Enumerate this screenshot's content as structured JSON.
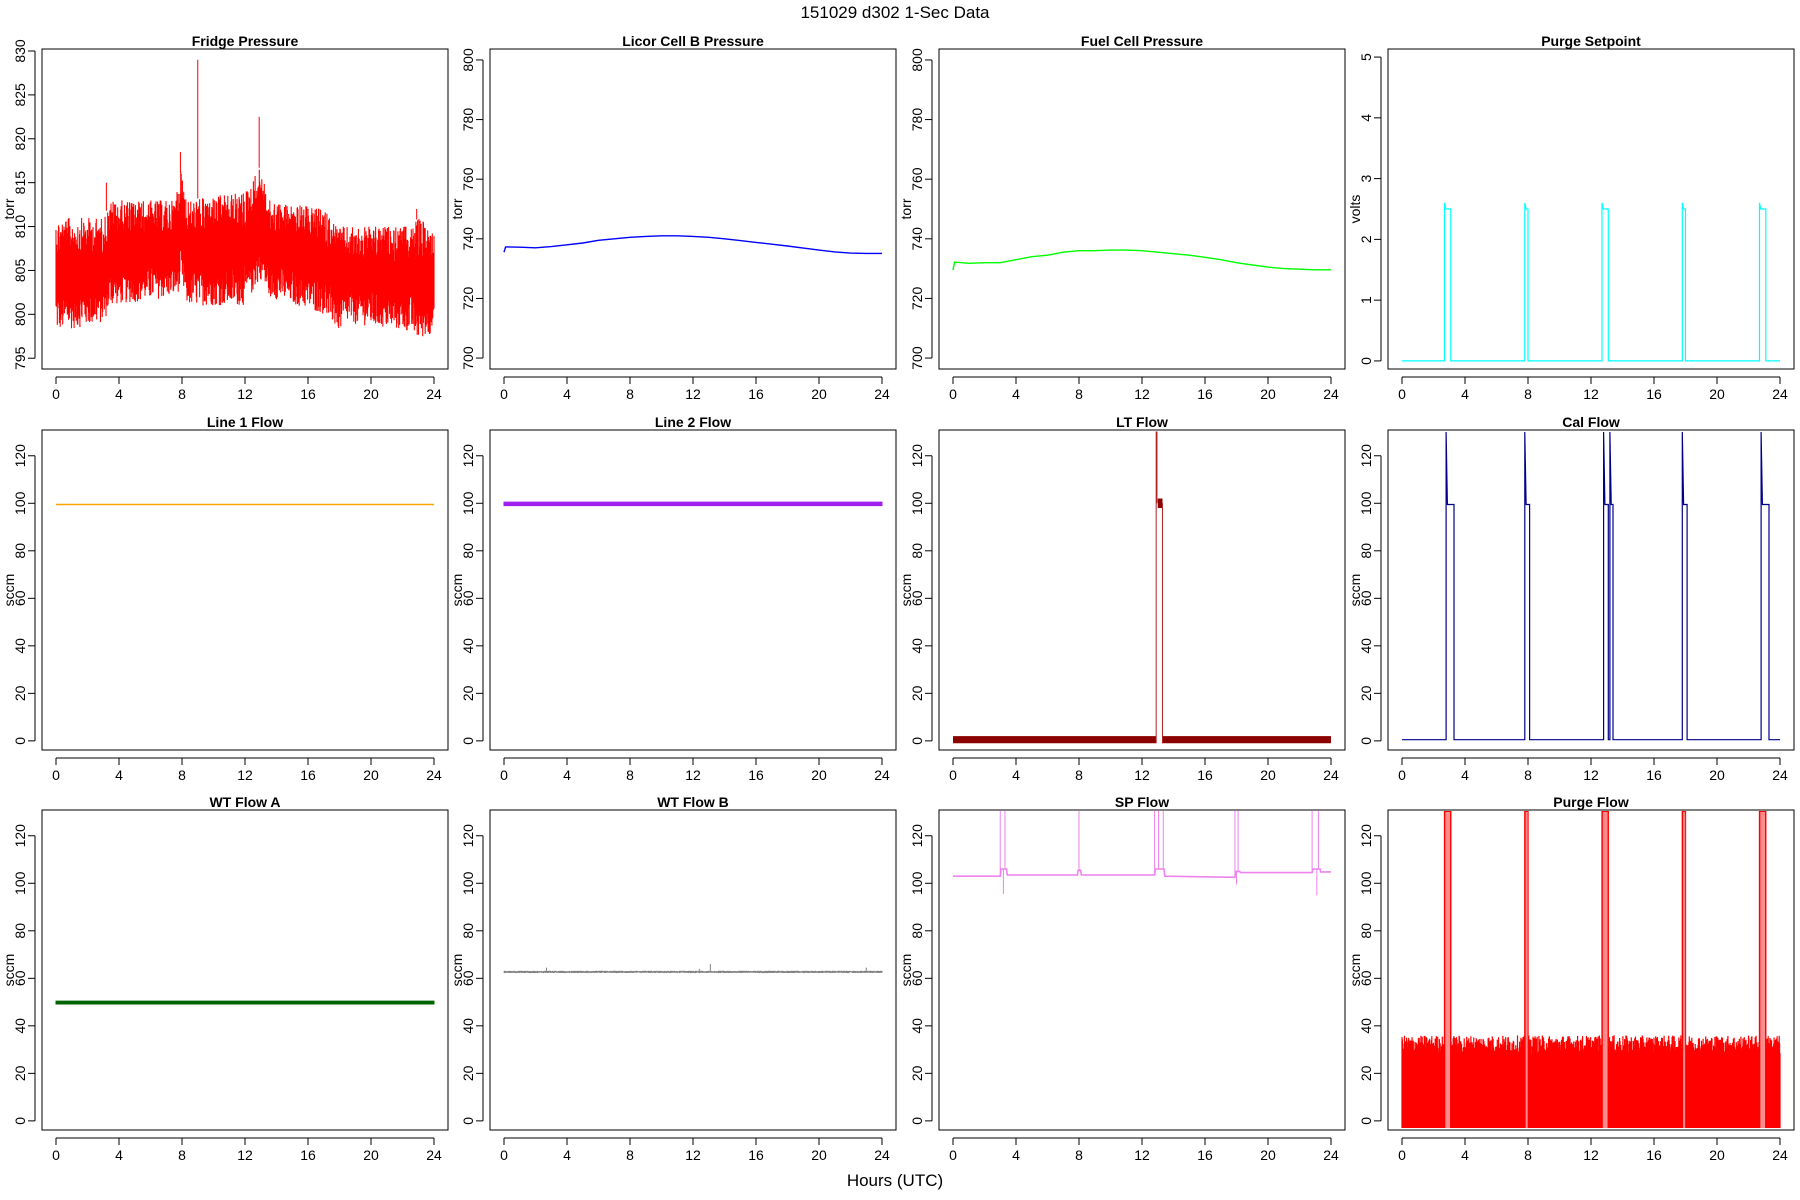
{
  "figure": {
    "title": "151029   d302   1-Sec Data",
    "xlabel": "Hours (UTC)"
  },
  "chart_data": [
    {
      "type": "line",
      "title": "Fridge Pressure",
      "ylabel": "torr",
      "color": "#ff0000",
      "xlim": [
        0,
        24
      ],
      "ylim": [
        794,
        830
      ],
      "xticks": [
        0,
        4,
        8,
        12,
        16,
        20,
        24
      ],
      "yticks": [
        795,
        800,
        805,
        810,
        815,
        820,
        825,
        830
      ],
      "series": [
        {
          "style": "noisy_band",
          "x": [
            0,
            3,
            3.5,
            7.5,
            8,
            8.3,
            12,
            13,
            13.5,
            17,
            18,
            18.5,
            22.5,
            23,
            24
          ],
          "low": [
            798,
            799,
            801,
            802,
            803,
            801,
            801,
            804,
            802,
            800,
            798,
            799,
            798,
            797,
            798
          ],
          "high": [
            811,
            811,
            813,
            813,
            817,
            813,
            814,
            817,
            813,
            812,
            810,
            810,
            810,
            811,
            810
          ],
          "spikes": [
            [
              9.0,
              829
            ],
            [
              12.9,
              822.5
            ],
            [
              3.2,
              815
            ],
            [
              7.9,
              818.5
            ],
            [
              22.9,
              812
            ]
          ]
        }
      ]
    },
    {
      "type": "line",
      "title": "Licor Cell B Pressure",
      "ylabel": "torr",
      "color": "#0000ff",
      "xlim": [
        0,
        24
      ],
      "ylim": [
        697,
        803
      ],
      "xticks": [
        0,
        4,
        8,
        12,
        16,
        20,
        24
      ],
      "yticks": [
        700,
        720,
        740,
        760,
        780,
        800
      ],
      "series": [
        {
          "style": "line",
          "x": [
            0,
            0.1,
            1,
            2,
            3,
            4,
            5,
            6,
            7,
            8,
            9,
            10,
            11,
            12,
            13,
            14,
            15,
            16,
            17,
            18,
            19,
            20,
            21,
            22,
            23,
            24
          ],
          "y": [
            735.5,
            737.3,
            737.2,
            737.0,
            737.4,
            738.0,
            738.6,
            739.5,
            740.0,
            740.5,
            740.8,
            741.0,
            741.0,
            740.8,
            740.5,
            740.0,
            739.4,
            738.8,
            738.2,
            737.6,
            736.9,
            736.2,
            735.6,
            735.2,
            735.1,
            735.1
          ]
        }
      ]
    },
    {
      "type": "line",
      "title": "Fuel Cell Pressure",
      "ylabel": "torr",
      "color": "#00ff00",
      "xlim": [
        0,
        24
      ],
      "ylim": [
        697,
        803
      ],
      "xticks": [
        0,
        4,
        8,
        12,
        16,
        20,
        24
      ],
      "yticks": [
        700,
        720,
        740,
        760,
        780,
        800
      ],
      "series": [
        {
          "style": "line",
          "x": [
            0,
            0.1,
            1,
            2,
            3,
            4,
            5,
            6,
            7,
            8,
            9,
            10,
            11,
            12,
            13,
            14,
            15,
            16,
            17,
            18,
            19,
            20,
            21,
            22,
            23,
            24
          ],
          "y": [
            729.5,
            732.2,
            731.8,
            732.0,
            732.0,
            733.0,
            734.0,
            734.5,
            735.5,
            736.0,
            736.0,
            736.2,
            736.2,
            736.0,
            735.5,
            735.0,
            734.5,
            733.8,
            733.0,
            732.0,
            731.2,
            730.5,
            730.0,
            729.8,
            729.6,
            729.6
          ]
        }
      ]
    },
    {
      "type": "line",
      "title": "Purge Setpoint",
      "ylabel": "volts",
      "color": "#00ffff",
      "xlim": [
        0,
        24
      ],
      "ylim": [
        -0.1,
        5.1
      ],
      "xticks": [
        0,
        4,
        8,
        12,
        16,
        20,
        24
      ],
      "yticks": [
        0,
        1,
        2,
        3,
        4,
        5
      ],
      "series": [
        {
          "style": "pulses",
          "base": 0,
          "level": 2.5,
          "peak": 2.6,
          "pulses": [
            [
              2.7,
              3.1
            ],
            [
              7.8,
              8.0
            ],
            [
              12.7,
              13.1
            ],
            [
              17.8,
              18.0
            ],
            [
              22.7,
              23.1
            ]
          ]
        }
      ]
    },
    {
      "type": "line",
      "title": "Line 1 Flow",
      "ylabel": "sccm",
      "color": "#ffa500",
      "xlim": [
        0,
        24
      ],
      "ylim": [
        -3,
        130
      ],
      "xticks": [
        0,
        4,
        8,
        12,
        16,
        20,
        24
      ],
      "yticks": [
        0,
        20,
        40,
        60,
        80,
        100,
        120
      ],
      "series": [
        {
          "style": "line",
          "x": [
            0,
            24
          ],
          "y": [
            99.5,
            99.5
          ]
        }
      ]
    },
    {
      "type": "line",
      "title": "Line 2 Flow",
      "ylabel": "sccm",
      "color": "#a020f0",
      "xlim": [
        0,
        24
      ],
      "ylim": [
        -3,
        130
      ],
      "xticks": [
        0,
        4,
        8,
        12,
        16,
        20,
        24
      ],
      "yticks": [
        0,
        20,
        40,
        60,
        80,
        100,
        120
      ],
      "series": [
        {
          "style": "band",
          "x": [
            0,
            24
          ],
          "low": [
            99,
            99
          ],
          "high": [
            100.5,
            100.5
          ]
        }
      ]
    },
    {
      "type": "line",
      "title": "LT Flow",
      "ylabel": "sccm",
      "color": "#8b0000",
      "xlim": [
        0,
        24
      ],
      "ylim": [
        -3,
        130
      ],
      "xticks": [
        0,
        4,
        8,
        12,
        16,
        20,
        24
      ],
      "yticks": [
        0,
        20,
        40,
        60,
        80,
        100,
        120
      ],
      "series": [
        {
          "style": "lt_flow",
          "band": [
            [
              0,
              12.9
            ],
            [
              13.3,
              24
            ]
          ],
          "band_low": -1,
          "band_high": 2,
          "plateau": [
            12.9,
            13.3
          ],
          "plateau_level": 100,
          "spike_x": 13.0,
          "spike_top": 130
        }
      ]
    },
    {
      "type": "line",
      "title": "Cal Flow",
      "ylabel": "sccm",
      "color": "#00008b",
      "xlim": [
        0,
        24
      ],
      "ylim": [
        -3,
        130
      ],
      "xticks": [
        0,
        4,
        8,
        12,
        16,
        20,
        24
      ],
      "yticks": [
        0,
        20,
        40,
        60,
        80,
        100,
        120
      ],
      "series": [
        {
          "style": "pulses",
          "base": 0.5,
          "level": 99.5,
          "peak": 130,
          "pulses": [
            [
              2.8,
              3.3
            ],
            [
              7.8,
              8.1
            ],
            [
              12.8,
              13.1
            ],
            [
              13.2,
              13.4
            ],
            [
              17.8,
              18.1
            ],
            [
              22.8,
              23.3
            ]
          ]
        }
      ]
    },
    {
      "type": "line",
      "title": "WT Flow A",
      "ylabel": "sccm",
      "color": "#006400",
      "xlim": [
        0,
        24
      ],
      "ylim": [
        -3,
        130
      ],
      "xticks": [
        0,
        4,
        8,
        12,
        16,
        20,
        24
      ],
      "yticks": [
        0,
        20,
        40,
        60,
        80,
        100,
        120
      ],
      "series": [
        {
          "style": "band",
          "x": [
            0,
            24
          ],
          "low": [
            49.2,
            49.2
          ],
          "high": [
            50.4,
            50.4
          ]
        }
      ]
    },
    {
      "type": "line",
      "title": "WT Flow B",
      "ylabel": "sccm",
      "color": "#808080",
      "xlim": [
        0,
        24
      ],
      "ylim": [
        -3,
        130
      ],
      "xticks": [
        0,
        4,
        8,
        12,
        16,
        20,
        24
      ],
      "yticks": [
        0,
        20,
        40,
        60,
        80,
        100,
        120
      ],
      "series": [
        {
          "style": "noisy_band",
          "x": [
            0,
            24
          ],
          "low": [
            62.2,
            62.2
          ],
          "high": [
            63.2,
            63.2
          ],
          "spikes": [
            [
              2.7,
              64.5
            ],
            [
              13.1,
              66
            ],
            [
              12.4,
              64
            ],
            [
              23.0,
              64.5
            ]
          ]
        }
      ]
    },
    {
      "type": "line",
      "title": "SP Flow",
      "ylabel": "sccm",
      "color": "#ee82ee",
      "xlim": [
        0,
        24
      ],
      "ylim": [
        -3,
        130
      ],
      "xticks": [
        0,
        4,
        8,
        12,
        16,
        20,
        24
      ],
      "yticks": [
        0,
        20,
        40,
        60,
        80,
        100,
        120
      ],
      "series": [
        {
          "style": "sp_flow",
          "x": [
            0,
            3,
            3.05,
            3.4,
            3.45,
            7.9,
            7.95,
            8.1,
            8.15,
            12.8,
            12.85,
            13.4,
            13.45,
            17.9,
            17.95,
            18.2,
            18.25,
            22.8,
            22.85,
            23.3,
            23.35,
            24
          ],
          "y": [
            103.0,
            103.0,
            106.0,
            106.0,
            103.5,
            103.5,
            105.5,
            105.5,
            103.5,
            103.5,
            106.0,
            106.0,
            103.0,
            102.5,
            105.0,
            105.0,
            104.5,
            104.5,
            106.0,
            106.0,
            104.8,
            104.8
          ],
          "spikes": [
            3.0,
            3.3,
            8.0,
            12.8,
            13.05,
            13.35,
            17.9,
            18.1,
            22.8,
            23.2
          ],
          "dips": [
            [
              3.2,
              95.5
            ],
            [
              18.0,
              99.5
            ],
            [
              23.1,
              95
            ]
          ]
        }
      ]
    },
    {
      "type": "line",
      "title": "Purge Flow",
      "ylabel": "sccm",
      "color": "#ff0000",
      "xlim": [
        0,
        24
      ],
      "ylim": [
        -3,
        130
      ],
      "xticks": [
        0,
        4,
        8,
        12,
        16,
        20,
        24
      ],
      "yticks": [
        0,
        20,
        40,
        60,
        80,
        100,
        120
      ],
      "series": [
        {
          "style": "purge_flow",
          "low": -3,
          "high_min": 28,
          "high_max": 36,
          "pulses": [
            [
              2.7,
              3.1
            ],
            [
              7.8,
              8.0
            ],
            [
              12.7,
              13.1
            ],
            [
              17.8,
              18.0
            ],
            [
              22.7,
              23.1
            ]
          ]
        }
      ]
    }
  ]
}
